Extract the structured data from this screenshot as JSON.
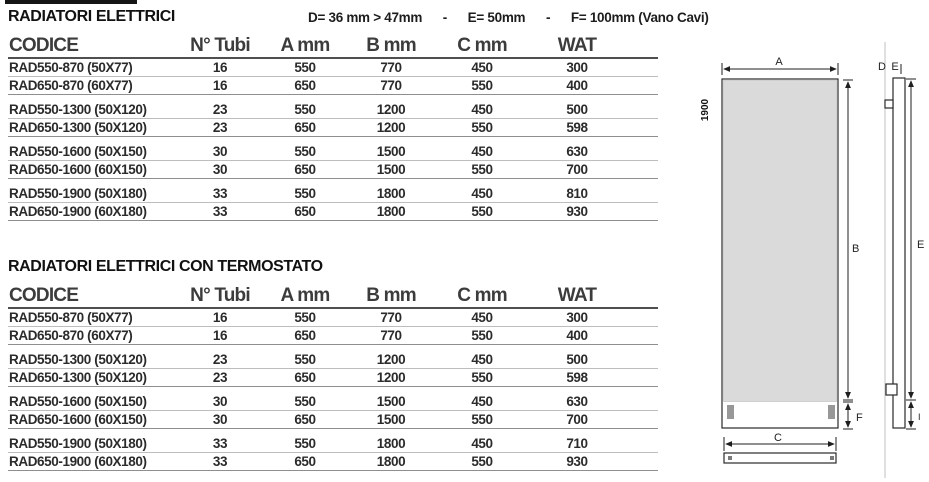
{
  "page": {
    "kind": "product-specification-sheet"
  },
  "tables": [
    {
      "title": "RADIATORI ELETTRICI",
      "note": "D= 36 mm > 47mm      -      E= 50mm      -      F= 100mm (Vano Cavi)",
      "columns": [
        "CODICE",
        "N° Tubi",
        "A mm",
        "B mm",
        "C mm",
        "WAT"
      ],
      "rows": [
        [
          "RAD550-870 (50X77)",
          "16",
          "550",
          "770",
          "450",
          "300"
        ],
        [
          "RAD650-870 (60X77)",
          "16",
          "650",
          "770",
          "550",
          "400"
        ],
        [
          "RAD550-1300 (50X120)",
          "23",
          "550",
          "1200",
          "450",
          "500"
        ],
        [
          "RAD650-1300 (50X120)",
          "23",
          "650",
          "1200",
          "550",
          "598"
        ],
        [
          "RAD550-1600 (50X150)",
          "30",
          "550",
          "1500",
          "450",
          "630"
        ],
        [
          "RAD650-1600 (60X150)",
          "30",
          "650",
          "1500",
          "550",
          "700"
        ],
        [
          "RAD550-1900 (50X180)",
          "33",
          "550",
          "1800",
          "450",
          "810"
        ],
        [
          "RAD650-1900 (60X180)",
          "33",
          "650",
          "1800",
          "550",
          "930"
        ]
      ]
    },
    {
      "title": "RADIATORI ELETTRICI CON TERMOSTATO",
      "note": "",
      "columns": [
        "CODICE",
        "N° Tubi",
        "A mm",
        "B mm",
        "C mm",
        "WAT"
      ],
      "rows": [
        [
          "RAD550-870 (50X77)",
          "16",
          "550",
          "770",
          "450",
          "300"
        ],
        [
          "RAD650-870 (60X77)",
          "16",
          "650",
          "770",
          "550",
          "400"
        ],
        [
          "RAD550-1300 (50X120)",
          "23",
          "550",
          "1200",
          "450",
          "500"
        ],
        [
          "RAD650-1300 (50X120)",
          "23",
          "650",
          "1200",
          "550",
          "598"
        ],
        [
          "RAD550-1600 (50X150)",
          "30",
          "550",
          "1500",
          "450",
          "630"
        ],
        [
          "RAD650-1600 (60X150)",
          "30",
          "650",
          "1500",
          "550",
          "700"
        ],
        [
          "RAD550-1900 (50X180)",
          "33",
          "550",
          "1800",
          "450",
          "710"
        ],
        [
          "RAD650-1900 (60X180)",
          "33",
          "650",
          "1800",
          "550",
          "930"
        ]
      ]
    }
  ],
  "diagram": {
    "a": "A",
    "overall_height": "1900",
    "b": "B",
    "c": "C",
    "f": "F",
    "d": "D",
    "e_top": "E",
    "e": "E",
    "i": "I",
    "panel_fill": "#dadada",
    "bracket_fill": "#989898"
  }
}
